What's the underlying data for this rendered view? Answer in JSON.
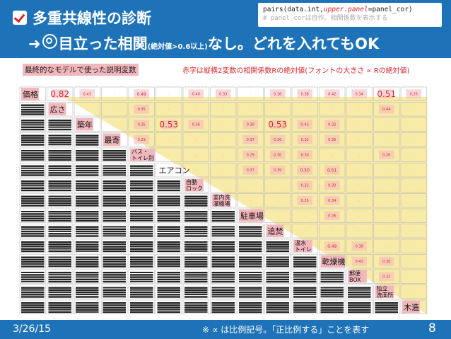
{
  "header": {
    "title": "多重共線性の診断",
    "subtitle_part1": "目立った相関",
    "subtitle_small": "(絶対値>0.6以上)",
    "subtitle_part2": "なし。どれを入れてもOK",
    "arrow": "➜"
  },
  "code": {
    "line1_prefix": "pairs(data.int,",
    "line1_kw": "upper.panel",
    "line1_suffix": "=panel_cor)",
    "line2": "# panel_corは自作。相関係数を表示する"
  },
  "labels": {
    "left": "最終的なモデルで使った説明変数",
    "right": "赤字は縦横2変数の相関係数Rの絶対値(フォントの大きさ ∝ Rの絶対値)"
  },
  "colors": {
    "header_bg": "#1e73b8",
    "highlight": "#f2b7bd",
    "yellow": "#f5e48a",
    "red": "#d9262c"
  },
  "matrix": {
    "variables": [
      "価格",
      "広さ",
      "築年",
      "最寄",
      "バス・トイレ別",
      "エアコン",
      "自動ロック",
      "室内洗濯機場",
      "駐車場",
      "追焚",
      "温水トイレ",
      "乾燥機",
      "郵便BOX",
      "独立洗面所",
      "木造"
    ],
    "highlighted_variables": [
      0,
      1,
      2,
      3,
      4,
      6,
      7,
      8,
      9,
      10,
      11,
      12,
      13,
      14
    ],
    "r_values": {
      "0-1": "0.82",
      "0-2": "0.43",
      "0-4": "0.49",
      "0-6": "0.40",
      "0-7": "0.33",
      "0-9": "0.38",
      "0-10": "0.38",
      "0-11": "0.42",
      "0-12": "0.34",
      "0-13": "0.51",
      "0-14": "0.26",
      "1-4": "0.35",
      "1-13": "0.44",
      "2-4": "0.35",
      "2-5": "0.53",
      "2-6": "0.36",
      "2-8": "0.39",
      "2-9": "0.53",
      "2-10": "0.45",
      "2-11": "0.32",
      "3-4": "0.29",
      "3-8": "0.37",
      "3-9": "0.36",
      "3-10": "0.32",
      "3-11": "0.36",
      "4-8": "0.29",
      "4-9": "0.30",
      "4-10": "0.30",
      "4-13": "0.26",
      "5-8": "0.37",
      "5-9": "0.39",
      "5-10": "0.50",
      "5-11": "0.51",
      "6-10": "0.32",
      "6-11": "0.30",
      "7-10": "0.25",
      "7-11": "0.34",
      "8-11": "0.26",
      "10-11": "0.49",
      "10-12": "0.38",
      "11-12": "0.43",
      "11-13": "0.38",
      "12-13": "0.32"
    },
    "big_values": [
      "0-1",
      "0-13",
      "2-5",
      "2-9"
    ]
  },
  "footer": {
    "date": "3/26/15",
    "note": "※ ∝ は比例記号。「正比例する」ことを表す",
    "page": "8"
  }
}
